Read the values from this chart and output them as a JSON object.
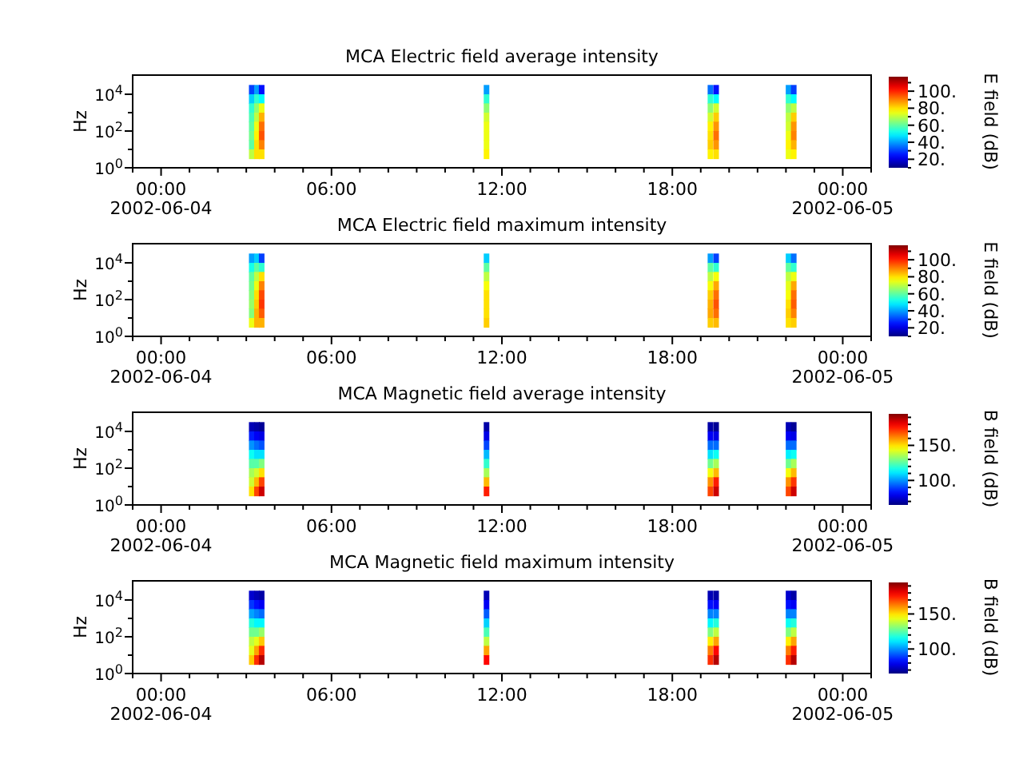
{
  "chart_data": [
    {
      "type": "scatter",
      "title": "MCA  Electric field average intensity",
      "ylabel": "Hz",
      "clabel": "E field (dB)",
      "log": "y",
      "marker": "square",
      "xlim": [
        "2002-06-03T23:00",
        "2002-06-05T01:00"
      ],
      "xticks": [
        {
          "value": "2002-06-03T23:00",
          "label": null
        },
        {
          "value": "2002-06-04T00:00",
          "label": "00:00\n2002-06-04"
        },
        {
          "value": "2002-06-04T01:00",
          "label": null
        },
        {
          "value": "2002-06-04T02:00",
          "label": null
        },
        {
          "value": "2002-06-04T03:00",
          "label": null
        },
        {
          "value": "2002-06-04T04:00",
          "label": null
        },
        {
          "value": "2002-06-04T05:00",
          "label": null
        },
        {
          "value": "2002-06-04T06:00",
          "label": "06:00"
        },
        {
          "value": "2002-06-04T07:00",
          "label": null
        },
        {
          "value": "2002-06-04T08:00",
          "label": null
        },
        {
          "value": "2002-06-04T09:00",
          "label": null
        },
        {
          "value": "2002-06-04T10:00",
          "label": null
        },
        {
          "value": "2002-06-04T11:00",
          "label": null
        },
        {
          "value": "2002-06-04T12:00",
          "label": "12:00"
        },
        {
          "value": "2002-06-04T13:00",
          "label": null
        },
        {
          "value": "2002-06-04T14:00",
          "label": null
        },
        {
          "value": "2002-06-04T15:00",
          "label": null
        },
        {
          "value": "2002-06-04T16:00",
          "label": null
        },
        {
          "value": "2002-06-04T17:00",
          "label": null
        },
        {
          "value": "2002-06-04T18:00",
          "label": "18:00"
        },
        {
          "value": "2002-06-04T19:00",
          "label": null
        },
        {
          "value": "2002-06-04T20:00",
          "label": null
        },
        {
          "value": "2002-06-04T21:00",
          "label": null
        },
        {
          "value": "2002-06-04T22:00",
          "label": null
        },
        {
          "value": "2002-06-04T23:00",
          "label": null
        },
        {
          "value": "2002-06-05T00:00",
          "label": "00:00\n2002-06-05"
        },
        {
          "value": "2002-06-05T01:00",
          "label": null
        }
      ],
      "ylim": [
        1,
        110000
      ],
      "yticks": [
        {
          "value": 1,
          "label": "10$^{0}$"
        },
        {
          "value": 10,
          "label": null
        },
        {
          "value": 100,
          "label": "10$^{2}$"
        },
        {
          "value": 1000,
          "label": null
        },
        {
          "value": 10000,
          "label": "10$^{4}$"
        }
      ],
      "clim": [
        10,
        117
      ],
      "cticks": [
        {
          "value": 10,
          "label": null
        },
        {
          "value": 20,
          "label": "20."
        },
        {
          "value": 30,
          "label": null
        },
        {
          "value": 40,
          "label": "40."
        },
        {
          "value": 50,
          "label": null
        },
        {
          "value": 60,
          "label": "60."
        },
        {
          "value": 70,
          "label": null
        },
        {
          "value": 80,
          "label": "80."
        },
        {
          "value": 90,
          "label": null
        },
        {
          "value": 100,
          "label": "100."
        },
        {
          "value": 110,
          "label": null
        }
      ],
      "x": [
        "2002-06-04T03:11",
        "2002-06-04T03:11",
        "2002-06-04T03:11",
        "2002-06-04T03:11",
        "2002-06-04T03:11",
        "2002-06-04T03:11",
        "2002-06-04T03:11",
        "2002-06-04T03:11",
        "2002-06-04T03:22",
        "2002-06-04T03:22",
        "2002-06-04T03:22",
        "2002-06-04T03:22",
        "2002-06-04T03:22",
        "2002-06-04T03:22",
        "2002-06-04T03:22",
        "2002-06-04T03:22",
        "2002-06-04T03:32",
        "2002-06-04T03:32",
        "2002-06-04T03:32",
        "2002-06-04T03:32",
        "2002-06-04T03:32",
        "2002-06-04T03:32",
        "2002-06-04T03:32",
        "2002-06-04T03:32",
        "2002-06-04T11:27",
        "2002-06-04T11:27",
        "2002-06-04T11:27",
        "2002-06-04T11:27",
        "2002-06-04T11:27",
        "2002-06-04T11:27",
        "2002-06-04T11:27",
        "2002-06-04T11:27",
        "2002-06-04T19:20",
        "2002-06-04T19:20",
        "2002-06-04T19:20",
        "2002-06-04T19:20",
        "2002-06-04T19:20",
        "2002-06-04T19:20",
        "2002-06-04T19:20",
        "2002-06-04T19:20",
        "2002-06-04T19:32",
        "2002-06-04T19:32",
        "2002-06-04T19:32",
        "2002-06-04T19:32",
        "2002-06-04T19:32",
        "2002-06-04T19:32",
        "2002-06-04T19:32",
        "2002-06-04T19:32",
        "2002-06-04T22:05",
        "2002-06-04T22:05",
        "2002-06-04T22:05",
        "2002-06-04T22:05",
        "2002-06-04T22:05",
        "2002-06-04T22:05",
        "2002-06-04T22:05",
        "2002-06-04T22:05",
        "2002-06-04T22:16",
        "2002-06-04T22:16",
        "2002-06-04T22:16",
        "2002-06-04T22:16",
        "2002-06-04T22:16",
        "2002-06-04T22:16",
        "2002-06-04T22:16",
        "2002-06-04T22:16"
      ],
      "values": [
        18000,
        5600,
        1800,
        560,
        180,
        56,
        18,
        5.6,
        18000,
        5600,
        1800,
        560,
        180,
        56,
        18,
        5.6,
        18000,
        5600,
        1800,
        560,
        180,
        56,
        18,
        5.6,
        18000,
        5600,
        1800,
        560,
        180,
        56,
        18,
        5.6,
        18000,
        5600,
        1800,
        560,
        180,
        56,
        18,
        5.6,
        18000,
        5600,
        1800,
        560,
        180,
        56,
        18,
        5.6,
        18000,
        5600,
        1800,
        560,
        180,
        56,
        18,
        5.6,
        18000,
        5600,
        1800,
        560,
        180,
        56,
        18,
        5.6
      ],
      "cvalues": [
        30,
        45,
        55,
        58,
        60,
        62,
        60,
        70,
        40,
        55,
        65,
        70,
        75,
        78,
        80,
        80,
        25,
        50,
        75,
        85,
        92,
        95,
        90,
        80,
        40,
        55,
        65,
        72,
        75,
        75,
        75,
        78,
        35,
        55,
        65,
        72,
        78,
        80,
        82,
        78,
        25,
        50,
        72,
        82,
        88,
        92,
        88,
        80,
        40,
        55,
        65,
        70,
        72,
        75,
        78,
        75,
        30,
        50,
        70,
        82,
        88,
        90,
        85,
        78
      ]
    },
    {
      "type": "scatter",
      "title": "MCA  Electric field maximum intensity",
      "ylabel": "Hz",
      "clabel": "E field (dB)",
      "log": "y",
      "marker": "square",
      "xlim": [
        "2002-06-03T23:00",
        "2002-06-05T01:00"
      ],
      "xticks": [
        {
          "value": "2002-06-03T23:00",
          "label": null
        },
        {
          "value": "2002-06-04T00:00",
          "label": "00:00\n2002-06-04"
        },
        {
          "value": "2002-06-04T01:00",
          "label": null
        },
        {
          "value": "2002-06-04T02:00",
          "label": null
        },
        {
          "value": "2002-06-04T03:00",
          "label": null
        },
        {
          "value": "2002-06-04T04:00",
          "label": null
        },
        {
          "value": "2002-06-04T05:00",
          "label": null
        },
        {
          "value": "2002-06-04T06:00",
          "label": "06:00"
        },
        {
          "value": "2002-06-04T07:00",
          "label": null
        },
        {
          "value": "2002-06-04T08:00",
          "label": null
        },
        {
          "value": "2002-06-04T09:00",
          "label": null
        },
        {
          "value": "2002-06-04T10:00",
          "label": null
        },
        {
          "value": "2002-06-04T11:00",
          "label": null
        },
        {
          "value": "2002-06-04T12:00",
          "label": "12:00"
        },
        {
          "value": "2002-06-04T13:00",
          "label": null
        },
        {
          "value": "2002-06-04T14:00",
          "label": null
        },
        {
          "value": "2002-06-04T15:00",
          "label": null
        },
        {
          "value": "2002-06-04T16:00",
          "label": null
        },
        {
          "value": "2002-06-04T17:00",
          "label": null
        },
        {
          "value": "2002-06-04T18:00",
          "label": "18:00"
        },
        {
          "value": "2002-06-04T19:00",
          "label": null
        },
        {
          "value": "2002-06-04T20:00",
          "label": null
        },
        {
          "value": "2002-06-04T21:00",
          "label": null
        },
        {
          "value": "2002-06-04T22:00",
          "label": null
        },
        {
          "value": "2002-06-04T23:00",
          "label": null
        },
        {
          "value": "2002-06-05T00:00",
          "label": "00:00\n2002-06-05"
        },
        {
          "value": "2002-06-05T01:00",
          "label": null
        }
      ],
      "ylim": [
        1,
        110000
      ],
      "yticks": [
        {
          "value": 1,
          "label": "10$^{0}$"
        },
        {
          "value": 10,
          "label": null
        },
        {
          "value": 100,
          "label": "10$^{2}$"
        },
        {
          "value": 1000,
          "label": null
        },
        {
          "value": 10000,
          "label": "10$^{4}$"
        }
      ],
      "clim": [
        10,
        117
      ],
      "cticks": [
        {
          "value": 10,
          "label": null
        },
        {
          "value": 20,
          "label": "20."
        },
        {
          "value": 30,
          "label": null
        },
        {
          "value": 40,
          "label": "40."
        },
        {
          "value": 50,
          "label": null
        },
        {
          "value": 60,
          "label": "60."
        },
        {
          "value": 70,
          "label": null
        },
        {
          "value": 80,
          "label": "80."
        },
        {
          "value": 90,
          "label": null
        },
        {
          "value": 100,
          "label": "100."
        },
        {
          "value": 110,
          "label": null
        }
      ],
      "x": [
        "2002-06-04T03:11",
        "2002-06-04T03:11",
        "2002-06-04T03:11",
        "2002-06-04T03:11",
        "2002-06-04T03:11",
        "2002-06-04T03:11",
        "2002-06-04T03:11",
        "2002-06-04T03:11",
        "2002-06-04T03:22",
        "2002-06-04T03:22",
        "2002-06-04T03:22",
        "2002-06-04T03:22",
        "2002-06-04T03:22",
        "2002-06-04T03:22",
        "2002-06-04T03:22",
        "2002-06-04T03:22",
        "2002-06-04T03:32",
        "2002-06-04T03:32",
        "2002-06-04T03:32",
        "2002-06-04T03:32",
        "2002-06-04T03:32",
        "2002-06-04T03:32",
        "2002-06-04T03:32",
        "2002-06-04T03:32",
        "2002-06-04T11:27",
        "2002-06-04T11:27",
        "2002-06-04T11:27",
        "2002-06-04T11:27",
        "2002-06-04T11:27",
        "2002-06-04T11:27",
        "2002-06-04T11:27",
        "2002-06-04T11:27",
        "2002-06-04T19:20",
        "2002-06-04T19:20",
        "2002-06-04T19:20",
        "2002-06-04T19:20",
        "2002-06-04T19:20",
        "2002-06-04T19:20",
        "2002-06-04T19:20",
        "2002-06-04T19:20",
        "2002-06-04T19:32",
        "2002-06-04T19:32",
        "2002-06-04T19:32",
        "2002-06-04T19:32",
        "2002-06-04T19:32",
        "2002-06-04T19:32",
        "2002-06-04T19:32",
        "2002-06-04T19:32",
        "2002-06-04T22:05",
        "2002-06-04T22:05",
        "2002-06-04T22:05",
        "2002-06-04T22:05",
        "2002-06-04T22:05",
        "2002-06-04T22:05",
        "2002-06-04T22:05",
        "2002-06-04T22:05",
        "2002-06-04T22:16",
        "2002-06-04T22:16",
        "2002-06-04T22:16",
        "2002-06-04T22:16",
        "2002-06-04T22:16",
        "2002-06-04T22:16",
        "2002-06-04T22:16",
        "2002-06-04T22:16"
      ],
      "values": [
        18000,
        5600,
        1800,
        560,
        180,
        56,
        18,
        5.6,
        18000,
        5600,
        1800,
        560,
        180,
        56,
        18,
        5.6,
        18000,
        5600,
        1800,
        560,
        180,
        56,
        18,
        5.6,
        18000,
        5600,
        1800,
        560,
        180,
        56,
        18,
        5.6,
        18000,
        5600,
        1800,
        560,
        180,
        56,
        18,
        5.6,
        18000,
        5600,
        1800,
        560,
        180,
        56,
        18,
        5.6,
        18000,
        5600,
        1800,
        560,
        180,
        56,
        18,
        5.6,
        18000,
        5600,
        1800,
        560,
        180,
        56,
        18,
        5.6
      ],
      "cvalues": [
        40,
        52,
        60,
        62,
        64,
        66,
        64,
        75,
        45,
        60,
        70,
        75,
        80,
        82,
        85,
        85,
        30,
        55,
        80,
        90,
        96,
        98,
        94,
        85,
        45,
        60,
        70,
        76,
        80,
        80,
        80,
        82,
        40,
        60,
        70,
        76,
        82,
        85,
        86,
        82,
        30,
        55,
        76,
        86,
        92,
        95,
        92,
        84,
        45,
        60,
        70,
        74,
        76,
        80,
        82,
        80,
        35,
        55,
        75,
        86,
        92,
        94,
        90,
        82
      ]
    },
    {
      "type": "scatter",
      "title": "MCA  Magnetic field average intensity",
      "ylabel": "Hz",
      "clabel": "B field (dB)",
      "log": "y",
      "marker": "square",
      "xlim": [
        "2002-06-03T23:00",
        "2002-06-05T01:00"
      ],
      "xticks": [
        {
          "value": "2002-06-03T23:00",
          "label": null
        },
        {
          "value": "2002-06-04T00:00",
          "label": "00:00\n2002-06-04"
        },
        {
          "value": "2002-06-04T01:00",
          "label": null
        },
        {
          "value": "2002-06-04T02:00",
          "label": null
        },
        {
          "value": "2002-06-04T03:00",
          "label": null
        },
        {
          "value": "2002-06-04T04:00",
          "label": null
        },
        {
          "value": "2002-06-04T05:00",
          "label": null
        },
        {
          "value": "2002-06-04T06:00",
          "label": "06:00"
        },
        {
          "value": "2002-06-04T07:00",
          "label": null
        },
        {
          "value": "2002-06-04T08:00",
          "label": null
        },
        {
          "value": "2002-06-04T09:00",
          "label": null
        },
        {
          "value": "2002-06-04T10:00",
          "label": null
        },
        {
          "value": "2002-06-04T11:00",
          "label": null
        },
        {
          "value": "2002-06-04T12:00",
          "label": "12:00"
        },
        {
          "value": "2002-06-04T13:00",
          "label": null
        },
        {
          "value": "2002-06-04T14:00",
          "label": null
        },
        {
          "value": "2002-06-04T15:00",
          "label": null
        },
        {
          "value": "2002-06-04T16:00",
          "label": null
        },
        {
          "value": "2002-06-04T17:00",
          "label": null
        },
        {
          "value": "2002-06-04T18:00",
          "label": "18:00"
        },
        {
          "value": "2002-06-04T19:00",
          "label": null
        },
        {
          "value": "2002-06-04T20:00",
          "label": null
        },
        {
          "value": "2002-06-04T21:00",
          "label": null
        },
        {
          "value": "2002-06-04T22:00",
          "label": null
        },
        {
          "value": "2002-06-04T23:00",
          "label": null
        },
        {
          "value": "2002-06-05T00:00",
          "label": "00:00\n2002-06-05"
        },
        {
          "value": "2002-06-05T01:00",
          "label": null
        }
      ],
      "ylim": [
        1,
        110000
      ],
      "yticks": [
        {
          "value": 1,
          "label": "10$^{0}$"
        },
        {
          "value": 10,
          "label": null
        },
        {
          "value": 100,
          "label": "10$^{2}$"
        },
        {
          "value": 1000,
          "label": null
        },
        {
          "value": 10000,
          "label": "10$^{4}$"
        }
      ],
      "clim": [
        65,
        195
      ],
      "cticks": [
        {
          "value": 70,
          "label": null
        },
        {
          "value": 80,
          "label": null
        },
        {
          "value": 90,
          "label": null
        },
        {
          "value": 100,
          "label": "100."
        },
        {
          "value": 110,
          "label": null
        },
        {
          "value": 120,
          "label": null
        },
        {
          "value": 130,
          "label": null
        },
        {
          "value": 140,
          "label": null
        },
        {
          "value": 150,
          "label": "150."
        },
        {
          "value": 160,
          "label": null
        },
        {
          "value": 170,
          "label": null
        },
        {
          "value": 180,
          "label": null
        },
        {
          "value": 190,
          "label": null
        }
      ],
      "x": [
        "2002-06-04T03:11",
        "2002-06-04T03:11",
        "2002-06-04T03:11",
        "2002-06-04T03:11",
        "2002-06-04T03:11",
        "2002-06-04T03:11",
        "2002-06-04T03:11",
        "2002-06-04T03:11",
        "2002-06-04T03:22",
        "2002-06-04T03:22",
        "2002-06-04T03:22",
        "2002-06-04T03:22",
        "2002-06-04T03:22",
        "2002-06-04T03:22",
        "2002-06-04T03:22",
        "2002-06-04T03:22",
        "2002-06-04T03:32",
        "2002-06-04T03:32",
        "2002-06-04T03:32",
        "2002-06-04T03:32",
        "2002-06-04T03:32",
        "2002-06-04T03:32",
        "2002-06-04T03:32",
        "2002-06-04T03:32",
        "2002-06-04T11:27",
        "2002-06-04T11:27",
        "2002-06-04T11:27",
        "2002-06-04T11:27",
        "2002-06-04T11:27",
        "2002-06-04T11:27",
        "2002-06-04T11:27",
        "2002-06-04T11:27",
        "2002-06-04T19:20",
        "2002-06-04T19:20",
        "2002-06-04T19:20",
        "2002-06-04T19:20",
        "2002-06-04T19:20",
        "2002-06-04T19:20",
        "2002-06-04T19:20",
        "2002-06-04T19:20",
        "2002-06-04T19:32",
        "2002-06-04T19:32",
        "2002-06-04T19:32",
        "2002-06-04T19:32",
        "2002-06-04T19:32",
        "2002-06-04T19:32",
        "2002-06-04T19:32",
        "2002-06-04T19:32",
        "2002-06-04T22:05",
        "2002-06-04T22:05",
        "2002-06-04T22:05",
        "2002-06-04T22:05",
        "2002-06-04T22:05",
        "2002-06-04T22:05",
        "2002-06-04T22:05",
        "2002-06-04T22:05",
        "2002-06-04T22:16",
        "2002-06-04T22:16",
        "2002-06-04T22:16",
        "2002-06-04T22:16",
        "2002-06-04T22:16",
        "2002-06-04T22:16",
        "2002-06-04T22:16",
        "2002-06-04T22:16"
      ],
      "values": [
        18000,
        5600,
        1800,
        560,
        180,
        56,
        18,
        5.6,
        18000,
        5600,
        1800,
        560,
        180,
        56,
        18,
        5.6,
        18000,
        5600,
        1800,
        560,
        180,
        56,
        18,
        5.6,
        18000,
        5600,
        1800,
        560,
        180,
        56,
        18,
        5.6,
        18000,
        5600,
        1800,
        560,
        180,
        56,
        18,
        5.6,
        18000,
        5600,
        1800,
        560,
        180,
        56,
        18,
        5.6,
        18000,
        5600,
        1800,
        560,
        180,
        56,
        18,
        5.6,
        18000,
        5600,
        1800,
        560,
        180,
        56,
        18,
        5.6
      ],
      "cvalues": [
        72,
        85,
        100,
        115,
        125,
        135,
        140,
        150,
        70,
        80,
        95,
        110,
        125,
        140,
        155,
        170,
        68,
        78,
        92,
        110,
        130,
        150,
        170,
        185,
        70,
        78,
        90,
        105,
        120,
        135,
        155,
        175,
        70,
        80,
        95,
        110,
        128,
        145,
        160,
        170,
        68,
        78,
        95,
        115,
        135,
        155,
        175,
        185,
        72,
        80,
        95,
        112,
        128,
        145,
        160,
        170,
        68,
        78,
        95,
        115,
        135,
        155,
        172,
        185
      ]
    },
    {
      "type": "scatter",
      "title": "MCA  Magnetic field maximum intensity",
      "ylabel": "Hz",
      "clabel": "B field (dB)",
      "log": "y",
      "marker": "square",
      "xlim": [
        "2002-06-03T23:00",
        "2002-06-05T01:00"
      ],
      "xticks": [
        {
          "value": "2002-06-03T23:00",
          "label": null
        },
        {
          "value": "2002-06-04T00:00",
          "label": "00:00\n2002-06-04"
        },
        {
          "value": "2002-06-04T01:00",
          "label": null
        },
        {
          "value": "2002-06-04T02:00",
          "label": null
        },
        {
          "value": "2002-06-04T03:00",
          "label": null
        },
        {
          "value": "2002-06-04T04:00",
          "label": null
        },
        {
          "value": "2002-06-04T05:00",
          "label": null
        },
        {
          "value": "2002-06-04T06:00",
          "label": "06:00"
        },
        {
          "value": "2002-06-04T07:00",
          "label": null
        },
        {
          "value": "2002-06-04T08:00",
          "label": null
        },
        {
          "value": "2002-06-04T09:00",
          "label": null
        },
        {
          "value": "2002-06-04T10:00",
          "label": null
        },
        {
          "value": "2002-06-04T11:00",
          "label": null
        },
        {
          "value": "2002-06-04T12:00",
          "label": "12:00"
        },
        {
          "value": "2002-06-04T13:00",
          "label": null
        },
        {
          "value": "2002-06-04T14:00",
          "label": null
        },
        {
          "value": "2002-06-04T15:00",
          "label": null
        },
        {
          "value": "2002-06-04T16:00",
          "label": null
        },
        {
          "value": "2002-06-04T17:00",
          "label": null
        },
        {
          "value": "2002-06-04T18:00",
          "label": "18:00"
        },
        {
          "value": "2002-06-04T19:00",
          "label": null
        },
        {
          "value": "2002-06-04T20:00",
          "label": null
        },
        {
          "value": "2002-06-04T21:00",
          "label": null
        },
        {
          "value": "2002-06-04T22:00",
          "label": null
        },
        {
          "value": "2002-06-04T23:00",
          "label": null
        },
        {
          "value": "2002-06-05T00:00",
          "label": "00:00\n2002-06-05"
        },
        {
          "value": "2002-06-05T01:00",
          "label": null
        }
      ],
      "ylim": [
        1,
        110000
      ],
      "yticks": [
        {
          "value": 1,
          "label": "10$^{0}$"
        },
        {
          "value": 10,
          "label": null
        },
        {
          "value": 100,
          "label": "10$^{2}$"
        },
        {
          "value": 1000,
          "label": null
        },
        {
          "value": 10000,
          "label": "10$^{4}$"
        }
      ],
      "clim": [
        65,
        195
      ],
      "cticks": [
        {
          "value": 70,
          "label": null
        },
        {
          "value": 80,
          "label": null
        },
        {
          "value": 90,
          "label": null
        },
        {
          "value": 100,
          "label": "100."
        },
        {
          "value": 110,
          "label": null
        },
        {
          "value": 120,
          "label": null
        },
        {
          "value": 130,
          "label": null
        },
        {
          "value": 140,
          "label": null
        },
        {
          "value": 150,
          "label": "150."
        },
        {
          "value": 160,
          "label": null
        },
        {
          "value": 170,
          "label": null
        },
        {
          "value": 180,
          "label": null
        },
        {
          "value": 190,
          "label": null
        }
      ],
      "x": [
        "2002-06-04T03:11",
        "2002-06-04T03:11",
        "2002-06-04T03:11",
        "2002-06-04T03:11",
        "2002-06-04T03:11",
        "2002-06-04T03:11",
        "2002-06-04T03:11",
        "2002-06-04T03:11",
        "2002-06-04T03:22",
        "2002-06-04T03:22",
        "2002-06-04T03:22",
        "2002-06-04T03:22",
        "2002-06-04T03:22",
        "2002-06-04T03:22",
        "2002-06-04T03:22",
        "2002-06-04T03:22",
        "2002-06-04T03:32",
        "2002-06-04T03:32",
        "2002-06-04T03:32",
        "2002-06-04T03:32",
        "2002-06-04T03:32",
        "2002-06-04T03:32",
        "2002-06-04T03:32",
        "2002-06-04T03:32",
        "2002-06-04T11:27",
        "2002-06-04T11:27",
        "2002-06-04T11:27",
        "2002-06-04T11:27",
        "2002-06-04T11:27",
        "2002-06-04T11:27",
        "2002-06-04T11:27",
        "2002-06-04T11:27",
        "2002-06-04T19:20",
        "2002-06-04T19:20",
        "2002-06-04T19:20",
        "2002-06-04T19:20",
        "2002-06-04T19:20",
        "2002-06-04T19:20",
        "2002-06-04T19:20",
        "2002-06-04T19:20",
        "2002-06-04T19:32",
        "2002-06-04T19:32",
        "2002-06-04T19:32",
        "2002-06-04T19:32",
        "2002-06-04T19:32",
        "2002-06-04T19:32",
        "2002-06-04T19:32",
        "2002-06-04T19:32",
        "2002-06-04T22:05",
        "2002-06-04T22:05",
        "2002-06-04T22:05",
        "2002-06-04T22:05",
        "2002-06-04T22:05",
        "2002-06-04T22:05",
        "2002-06-04T22:05",
        "2002-06-04T22:05",
        "2002-06-04T22:16",
        "2002-06-04T22:16",
        "2002-06-04T22:16",
        "2002-06-04T22:16",
        "2002-06-04T22:16",
        "2002-06-04T22:16",
        "2002-06-04T22:16",
        "2002-06-04T22:16"
      ],
      "values": [
        18000,
        5600,
        1800,
        560,
        180,
        56,
        18,
        5.6,
        18000,
        5600,
        1800,
        560,
        180,
        56,
        18,
        5.6,
        18000,
        5600,
        1800,
        560,
        180,
        56,
        18,
        5.6,
        18000,
        5600,
        1800,
        560,
        180,
        56,
        18,
        5.6,
        18000,
        5600,
        1800,
        560,
        180,
        56,
        18,
        5.6,
        18000,
        5600,
        1800,
        560,
        180,
        56,
        18,
        5.6,
        18000,
        5600,
        1800,
        560,
        180,
        56,
        18,
        5.6,
        18000,
        5600,
        1800,
        560,
        180,
        56,
        18,
        5.6
      ],
      "cvalues": [
        75,
        88,
        102,
        118,
        128,
        138,
        143,
        153,
        72,
        83,
        98,
        113,
        128,
        143,
        158,
        173,
        70,
        80,
        95,
        113,
        133,
        153,
        173,
        188,
        72,
        80,
        93,
        108,
        123,
        138,
        158,
        178,
        72,
        83,
        98,
        113,
        130,
        148,
        163,
        173,
        70,
        80,
        98,
        118,
        138,
        158,
        178,
        188,
        75,
        83,
        98,
        115,
        130,
        148,
        163,
        173,
        70,
        80,
        98,
        118,
        138,
        158,
        175,
        188
      ]
    }
  ]
}
